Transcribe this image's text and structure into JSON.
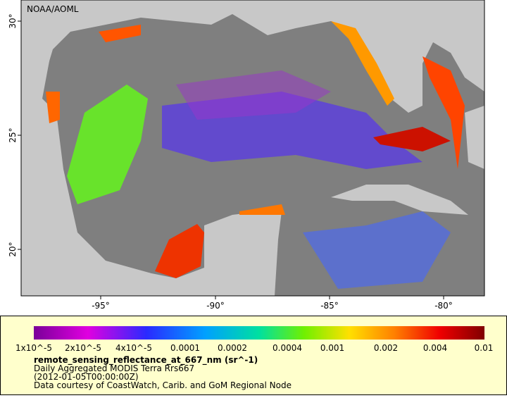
{
  "map": {
    "watermark": "NOAA/AOML",
    "lon_labels": [
      "-95°",
      "-90°",
      "-85°",
      "-80°"
    ],
    "lat_labels": [
      "30°",
      "25°",
      "20°"
    ]
  },
  "legend": {
    "tick_labels": [
      "1x10^-5",
      "2x10^-5",
      "4x10^-5",
      "0.0001",
      "0.0002",
      "0.0004",
      "0.001",
      "0.002",
      "0.004",
      "0.01"
    ],
    "title": "remote_sensing_reflectance_at_667_nm (sr^-1)",
    "lines": [
      "Daily Aggregated MODIS Terra Rrs667",
      "(2012-01-05T00:00:00Z)",
      "Data courtesy of CoastWatch, Carib. and GoM Regional Node"
    ]
  }
}
